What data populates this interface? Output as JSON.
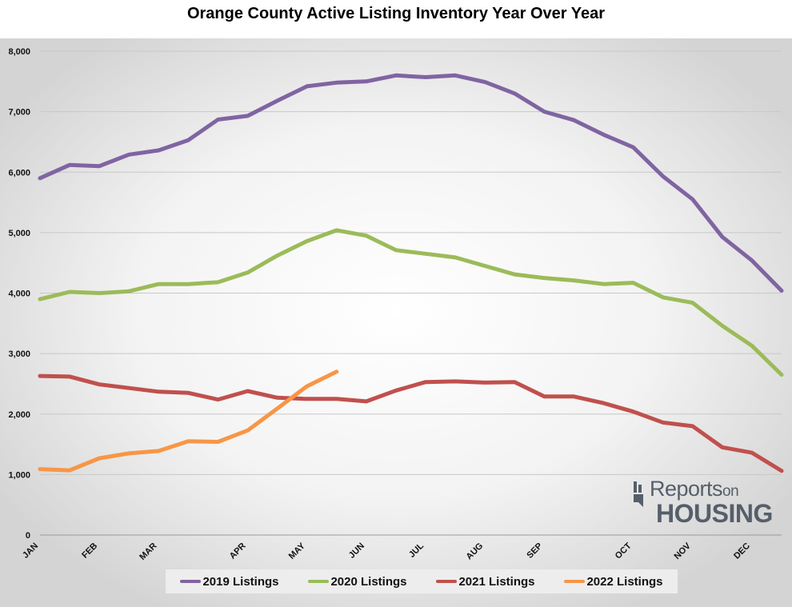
{
  "chart_data": {
    "type": "line",
    "title": "Orange County Active Listing Inventory Year Over Year",
    "xlabel": "",
    "ylabel": "",
    "ylim": [
      0,
      8000
    ],
    "y_ticks": [
      0,
      1000,
      2000,
      3000,
      4000,
      5000,
      6000,
      7000,
      8000
    ],
    "y_tick_labels": [
      "0",
      "1,000",
      "2,000",
      "3,000",
      "4,000",
      "5,000",
      "6,000",
      "7,000",
      "8,000"
    ],
    "x_tick_labels": [
      {
        "label": "JAN",
        "index": 0
      },
      {
        "label": "FEB",
        "index": 2
      },
      {
        "label": "MAR",
        "index": 4
      },
      {
        "label": "APR",
        "index": 7
      },
      {
        "label": "MAY",
        "index": 9
      },
      {
        "label": "JUN",
        "index": 11
      },
      {
        "label": "JUL",
        "index": 13
      },
      {
        "label": "AUG",
        "index": 15
      },
      {
        "label": "SEP",
        "index": 17
      },
      {
        "label": "OCT",
        "index": 20
      },
      {
        "label": "NOV",
        "index": 22
      },
      {
        "label": "DEC",
        "index": 24
      }
    ],
    "num_points": 26,
    "grid": true,
    "legend_position": "bottom",
    "series": [
      {
        "name": "2019 Listings",
        "color": "#8064a2",
        "values": [
          5900,
          6120,
          6100,
          6290,
          6360,
          6530,
          6870,
          6930,
          7180,
          7420,
          7480,
          7500,
          7600,
          7570,
          7600,
          7490,
          7300,
          7000,
          6860,
          6620,
          6410,
          5930,
          5550,
          4930,
          4540,
          4040
        ]
      },
      {
        "name": "2020 Listings",
        "color": "#9bbb59",
        "values": [
          3900,
          4020,
          4000,
          4030,
          4150,
          4150,
          4180,
          4340,
          4620,
          4860,
          5040,
          4950,
          4710,
          4650,
          4590,
          4450,
          4310,
          4250,
          4210,
          4150,
          4170,
          3930,
          3840,
          3460,
          3130,
          2650
        ]
      },
      {
        "name": "2021 Listings",
        "color": "#c0504d",
        "values": [
          2630,
          2620,
          2490,
          2430,
          2370,
          2350,
          2240,
          2380,
          2270,
          2250,
          2250,
          2210,
          2390,
          2530,
          2540,
          2520,
          2530,
          2290,
          2290,
          2180,
          2040,
          1860,
          1800,
          1450,
          1360,
          1060
        ]
      },
      {
        "name": "2022 Listings",
        "color": "#f79646",
        "values": [
          1090,
          1070,
          1270,
          1350,
          1390,
          1550,
          1540,
          1730,
          2090,
          2460,
          2700
        ]
      }
    ]
  },
  "legend": {
    "items": [
      "2019 Listings",
      "2020 Listings",
      "2021 Listings",
      "2022 Listings"
    ],
    "colors": [
      "#8064a2",
      "#9bbb59",
      "#c0504d",
      "#f79646"
    ]
  },
  "logo": {
    "line1": "Reports",
    "line1_small": "on",
    "line2": "HOUSING",
    "mark_color": "#555f6b"
  }
}
